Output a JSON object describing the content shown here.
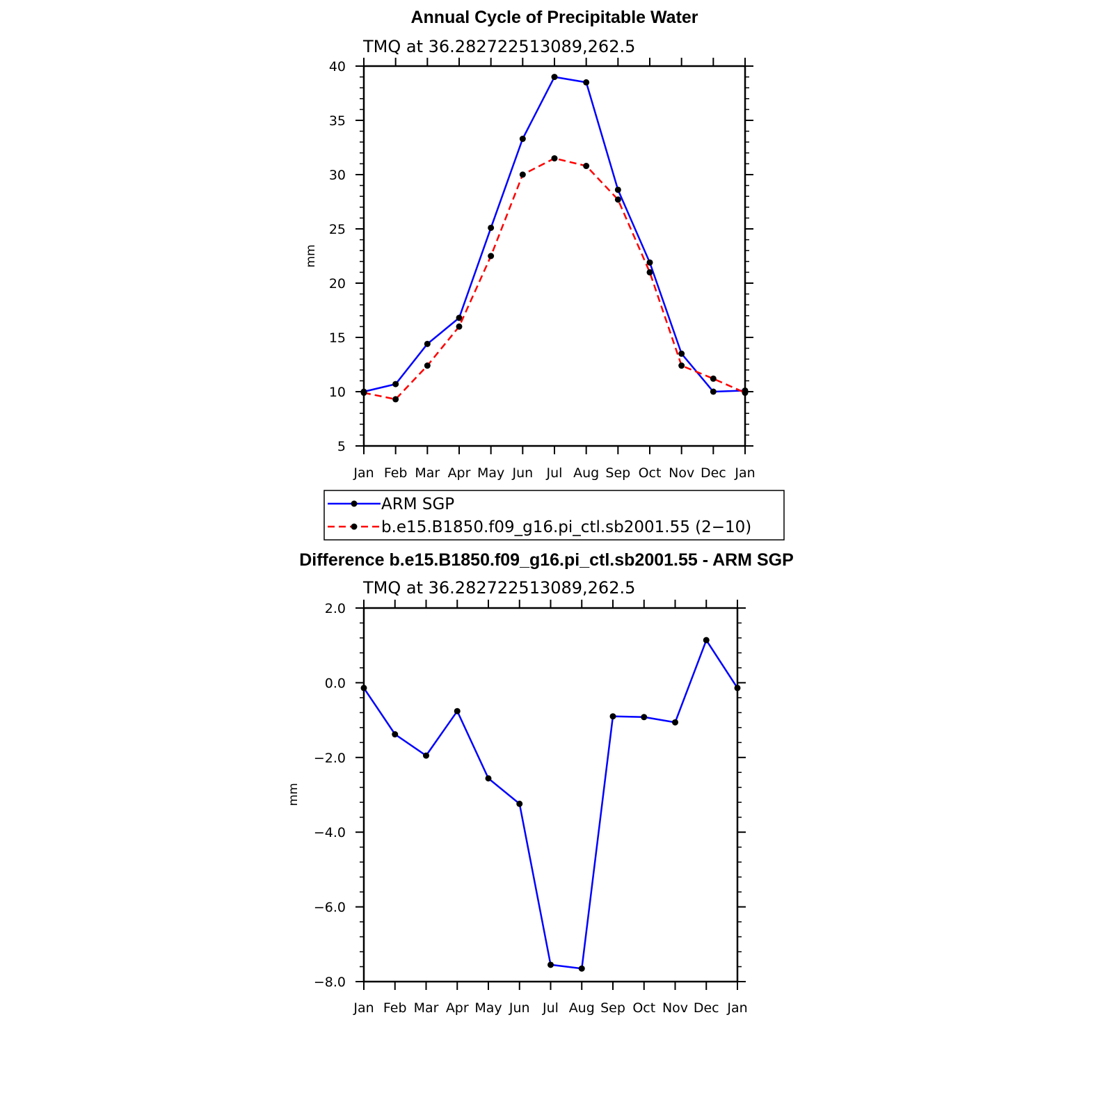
{
  "chart_data": [
    {
      "type": "line",
      "title": "Annual Cycle of Precipitable Water",
      "subtitle": "TMQ at 36.282722513089,262.5",
      "xlabel": "",
      "ylabel": "mm",
      "ylim": [
        5,
        40
      ],
      "yticks": [
        "5",
        "10",
        "15",
        "20",
        "25",
        "30",
        "35",
        "40"
      ],
      "ytick_values": [
        5,
        10,
        15,
        20,
        25,
        30,
        35,
        40
      ],
      "categories": [
        "Jan",
        "Feb",
        "Mar",
        "Apr",
        "May",
        "Jun",
        "Jul",
        "Aug",
        "Sep",
        "Oct",
        "Nov",
        "Dec",
        "Jan"
      ],
      "series": [
        {
          "name": "ARM SGP",
          "color": "#0000ff",
          "dash": "solid",
          "values": [
            10.0,
            10.7,
            14.4,
            16.8,
            25.1,
            33.3,
            39.0,
            38.5,
            28.6,
            21.9,
            13.5,
            10.0,
            10.1
          ]
        },
        {
          "name": "b.e15.B1850.f09_g16.pi_ctl.sb2001.55 (2−10)",
          "color": "#ff0000",
          "dash": "dashed",
          "values": [
            9.9,
            9.3,
            12.4,
            16.0,
            22.5,
            30.0,
            31.5,
            30.8,
            27.7,
            21.0,
            12.4,
            11.2,
            9.9
          ]
        }
      ],
      "legend": "below"
    },
    {
      "type": "line",
      "title": "Difference b.e15.B1850.f09_g16.pi_ctl.sb2001.55 - ARM SGP",
      "subtitle": "TMQ at 36.282722513089,262.5",
      "xlabel": "",
      "ylabel": "mm",
      "ylim": [
        -8,
        2
      ],
      "yticks": [
        "2.0",
        "0.0",
        "−2.0",
        "−4.0",
        "−6.0",
        "−8.0"
      ],
      "ytick_values": [
        2,
        0,
        -2,
        -4,
        -6,
        -8
      ],
      "categories": [
        "Jan",
        "Feb",
        "Mar",
        "Apr",
        "May",
        "Jun",
        "Jul",
        "Aug",
        "Sep",
        "Oct",
        "Nov",
        "Dec",
        "Jan"
      ],
      "series": [
        {
          "name": "Difference",
          "color": "#0000ff",
          "dash": "solid",
          "values": [
            -0.14,
            -1.38,
            -1.95,
            -0.76,
            -2.56,
            -3.24,
            -7.55,
            -7.65,
            -0.9,
            -0.92,
            -1.06,
            1.14,
            -0.14
          ]
        }
      ]
    }
  ]
}
